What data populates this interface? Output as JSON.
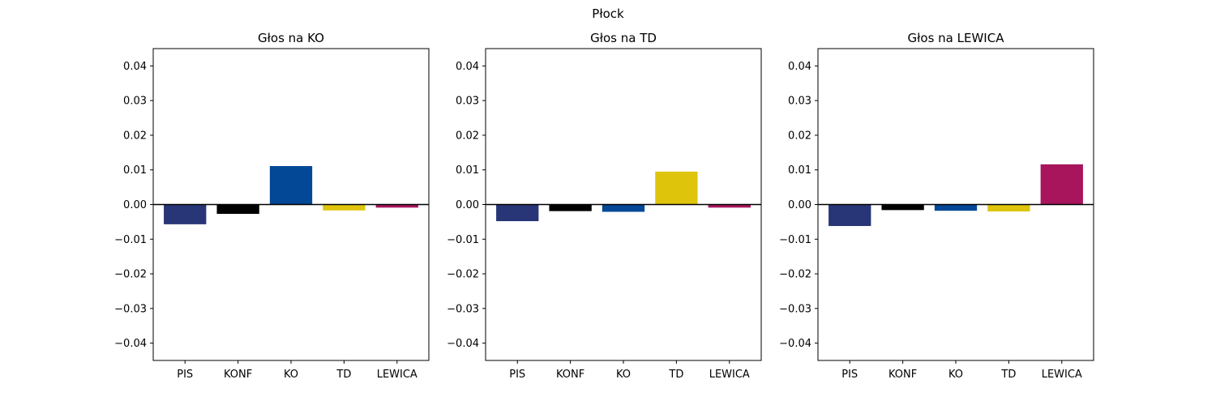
{
  "suptitle": "Płock",
  "chart_data": [
    {
      "type": "bar",
      "title": "Głos na KO",
      "categories": [
        "PIS",
        "KONF",
        "KO",
        "TD",
        "LEWICA"
      ],
      "values": [
        -0.0057,
        -0.0027,
        0.0111,
        -0.0017,
        -0.0009
      ],
      "colors": [
        "#283677",
        "#000000",
        "#034896",
        "#dfc40c",
        "#a9155d"
      ],
      "ylim": [
        -0.045,
        0.045
      ],
      "yticks": [
        "−0.04",
        "−0.03",
        "−0.02",
        "−0.01",
        "0.00",
        "0.01",
        "0.02",
        "0.03",
        "0.04"
      ],
      "ytick_values": [
        -0.04,
        -0.03,
        -0.02,
        -0.01,
        0,
        0.01,
        0.02,
        0.03,
        0.04
      ],
      "zero_line": true,
      "grid": false
    },
    {
      "type": "bar",
      "title": "Głos na TD",
      "categories": [
        "PIS",
        "KONF",
        "KO",
        "TD",
        "LEWICA"
      ],
      "values": [
        -0.0048,
        -0.0019,
        -0.0021,
        0.0095,
        -0.0009
      ],
      "colors": [
        "#283677",
        "#000000",
        "#034896",
        "#dfc40c",
        "#a9155d"
      ],
      "ylim": [
        -0.045,
        0.045
      ],
      "yticks": [
        "−0.04",
        "−0.03",
        "−0.02",
        "−0.01",
        "0.00",
        "0.01",
        "0.02",
        "0.03",
        "0.04"
      ],
      "ytick_values": [
        -0.04,
        -0.03,
        -0.02,
        -0.01,
        0,
        0.01,
        0.02,
        0.03,
        0.04
      ],
      "zero_line": true,
      "grid": false
    },
    {
      "type": "bar",
      "title": "Głos na LEWICA",
      "categories": [
        "PIS",
        "KONF",
        "KO",
        "TD",
        "LEWICA"
      ],
      "values": [
        -0.0062,
        -0.0016,
        -0.0018,
        -0.002,
        0.0116
      ],
      "colors": [
        "#283677",
        "#000000",
        "#034896",
        "#dfc40c",
        "#a9155d"
      ],
      "ylim": [
        -0.045,
        0.045
      ],
      "yticks": [
        "−0.04",
        "−0.03",
        "−0.02",
        "−0.01",
        "0.00",
        "0.01",
        "0.02",
        "0.03",
        "0.04"
      ],
      "ytick_values": [
        -0.04,
        -0.03,
        -0.02,
        -0.01,
        0,
        0.01,
        0.02,
        0.03,
        0.04
      ],
      "zero_line": true,
      "grid": false
    }
  ]
}
